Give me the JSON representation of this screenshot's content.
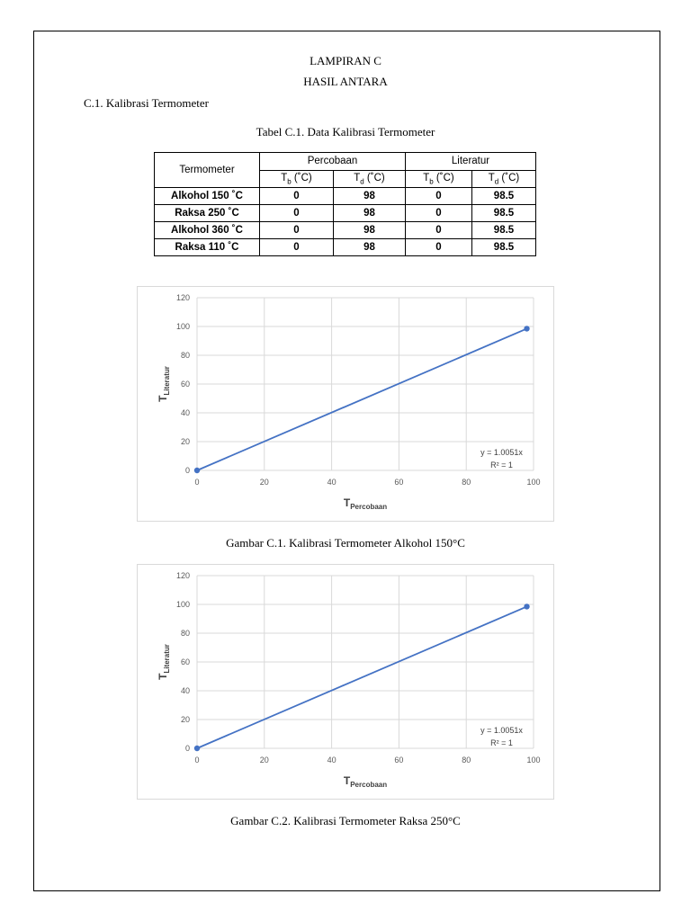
{
  "page": {
    "heading1": "LAMPIRAN C",
    "heading2": "HASIL ANTARA",
    "section": "C.1. Kalibrasi Termometer",
    "table_caption": "Tabel C.1. Data Kalibrasi Termometer"
  },
  "table": {
    "col_termometer": "Termometer",
    "group_percobaan": "Percobaan",
    "group_literatur": "Literatur",
    "tb_label": "T",
    "tb_sub": "b",
    "td_label": "T",
    "td_sub": "d",
    "unit": " (˚C)",
    "rows": [
      {
        "name": "Alkohol 150 ˚C",
        "p_tb": "0",
        "p_td": "98",
        "l_tb": "0",
        "l_td": "98.5"
      },
      {
        "name": "Raksa 250 ˚C",
        "p_tb": "0",
        "p_td": "98",
        "l_tb": "0",
        "l_td": "98.5"
      },
      {
        "name": "Alkohol 360 ˚C",
        "p_tb": "0",
        "p_td": "98",
        "l_tb": "0",
        "l_td": "98.5"
      },
      {
        "name": "Raksa 110 ˚C",
        "p_tb": "0",
        "p_td": "98",
        "l_tb": "0",
        "l_td": "98.5"
      }
    ]
  },
  "captions": {
    "fig1": "Gambar C.1. Kalibrasi Termometer Alkohol 150°C",
    "fig2": "Gambar C.2. Kalibrasi Termometer Raksa 250°C"
  },
  "chart_data": [
    {
      "type": "scatter",
      "x": [
        0,
        98
      ],
      "y": [
        0,
        98.5
      ],
      "xlabel_main": "T",
      "xlabel_sub": "Percobaan",
      "ylabel_main": "T",
      "ylabel_sub": "Literatur",
      "xlim": [
        0,
        100
      ],
      "ylim": [
        0,
        120
      ],
      "xticks": [
        0,
        20,
        40,
        60,
        80,
        100
      ],
      "yticks": [
        0,
        20,
        40,
        60,
        80,
        100,
        120
      ],
      "trendline_eq": "y = 1.0051x",
      "r_squared": "R² = 1",
      "grid": true,
      "line_color": "#4472C4",
      "marker_color": "#4472C4"
    },
    {
      "type": "scatter",
      "x": [
        0,
        98
      ],
      "y": [
        0,
        98.5
      ],
      "xlabel_main": "T",
      "xlabel_sub": "Percobaan",
      "ylabel_main": "T",
      "ylabel_sub": "Literatur",
      "xlim": [
        0,
        100
      ],
      "ylim": [
        0,
        120
      ],
      "xticks": [
        0,
        20,
        40,
        60,
        80,
        100
      ],
      "yticks": [
        0,
        20,
        40,
        60,
        80,
        100,
        120
      ],
      "trendline_eq": "y = 1.0051x",
      "r_squared": "R² = 1",
      "grid": true,
      "line_color": "#4472C4",
      "marker_color": "#4472C4"
    }
  ]
}
